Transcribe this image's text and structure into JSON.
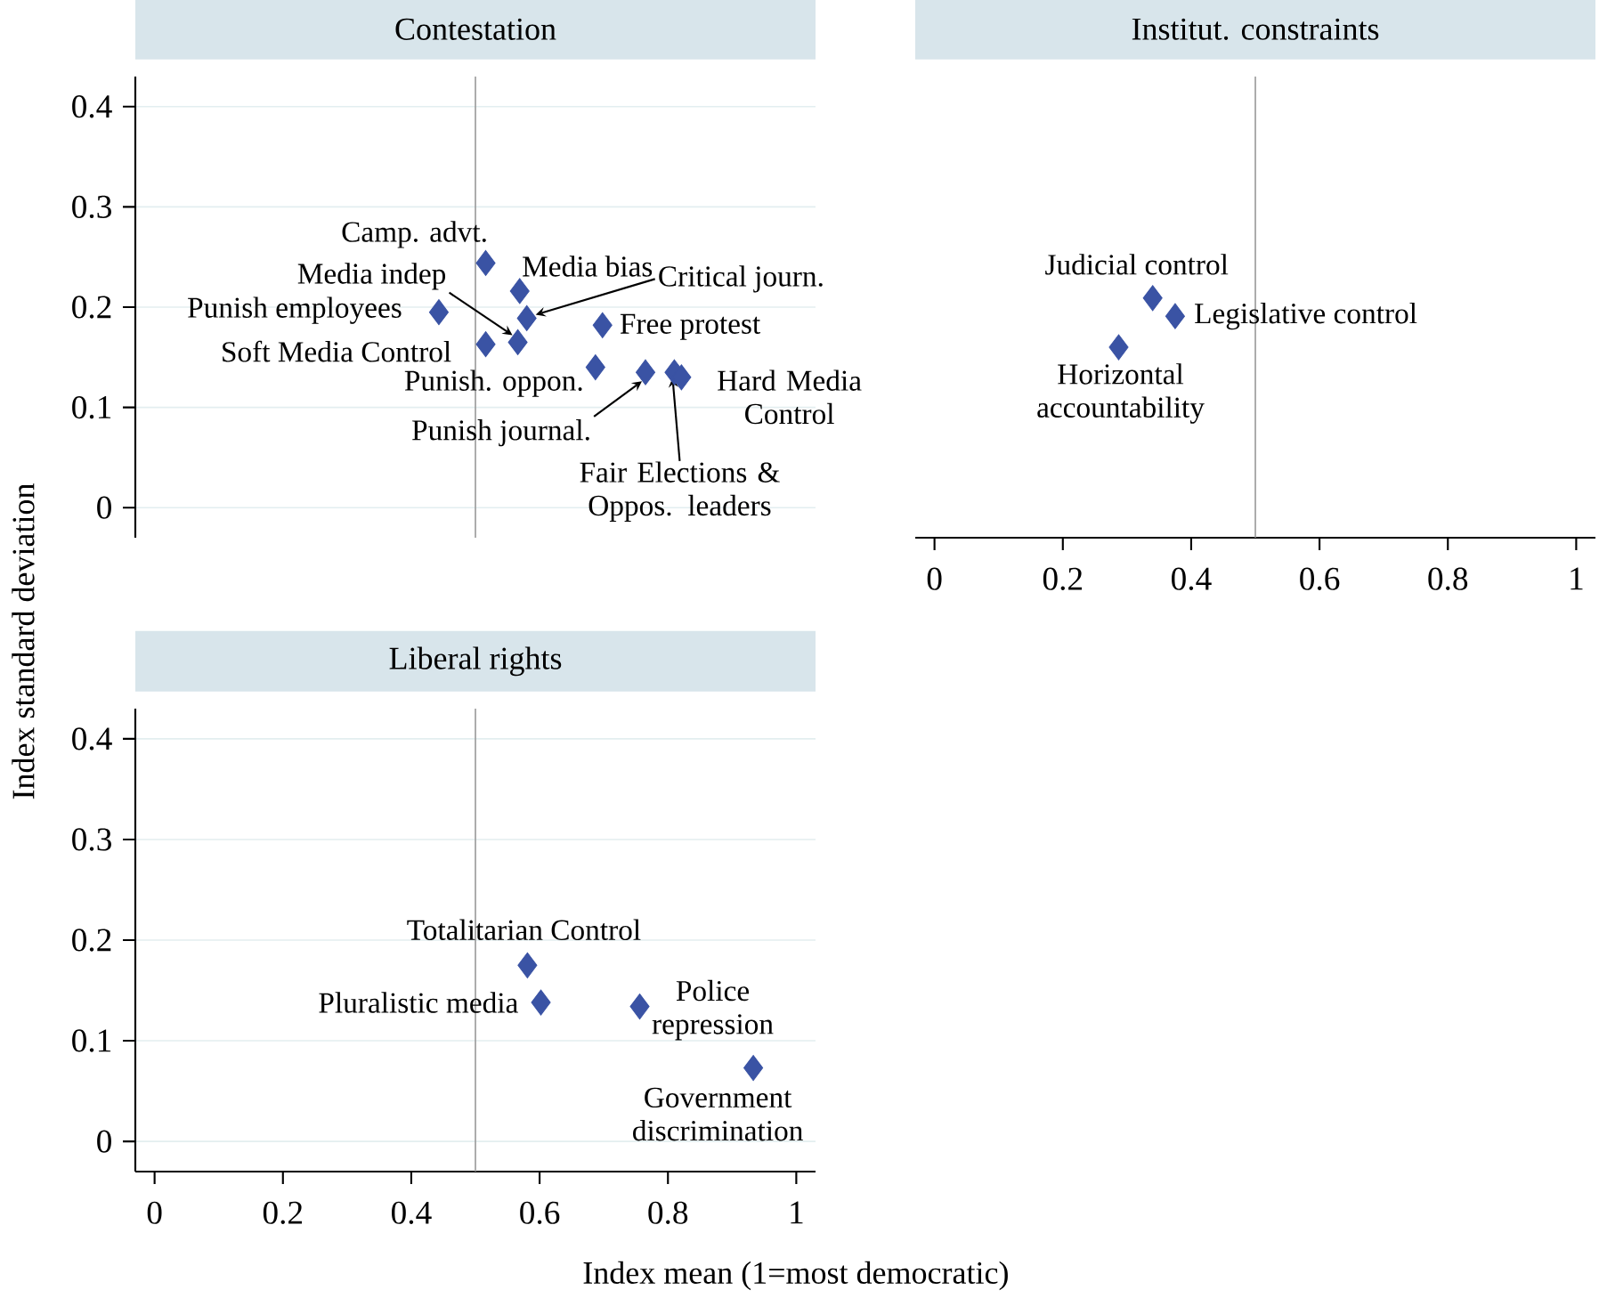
{
  "chart_data": [
    {
      "type": "scatter",
      "title": "Contestation",
      "ylabel": "Index standard deviation",
      "xlim": [
        -0.03,
        1.03
      ],
      "ylim": [
        -0.03,
        0.43
      ],
      "yticks": [
        0,
        0.1,
        0.2,
        0.3,
        0.4
      ],
      "grid": "y",
      "tick_labels": "y",
      "marker": "diamond",
      "ref_lines": [
        {
          "axis": "x",
          "value": 0.5,
          "color": "#999999"
        }
      ],
      "series": [
        {
          "color": "#3a53a4",
          "x": [
            0.516,
            0.569,
            0.58,
            0.443,
            0.516,
            0.566,
            0.698,
            0.687,
            0.765,
            0.81,
            0.821
          ],
          "values": [
            0.244,
            0.216,
            0.189,
            0.195,
            0.163,
            0.165,
            0.182,
            0.14,
            0.135,
            0.135,
            0.13
          ]
        }
      ],
      "annotations": [
        {
          "text": "Camp. advt.",
          "x": 0.516,
          "y": 0.244
        },
        {
          "text": "Media bias",
          "x": 0.569,
          "y": 0.216
        },
        {
          "text": "Critical journ.",
          "x": 0.58,
          "y": 0.189
        },
        {
          "text": "Punish employees",
          "x": 0.443,
          "y": 0.195
        },
        {
          "text": "Soft Media Control",
          "x": 0.516,
          "y": 0.163
        },
        {
          "text": "Media indep",
          "x": 0.566,
          "y": 0.165
        },
        {
          "text": "Free protest",
          "x": 0.698,
          "y": 0.182
        },
        {
          "text": "Punish. oppon.",
          "x": 0.687,
          "y": 0.14
        },
        {
          "text": "Punish journal.",
          "x": 0.765,
          "y": 0.135
        },
        {
          "text": "Fair Elections & Oppos. leaders",
          "x": 0.81,
          "y": 0.135
        },
        {
          "text": "Hard Media Control",
          "x": 0.821,
          "y": 0.13
        }
      ]
    },
    {
      "type": "scatter",
      "title": "Institut. constraints",
      "xlim": [
        -0.03,
        1.03
      ],
      "ylim": [
        -0.03,
        0.43
      ],
      "xticks": [
        0,
        0.2,
        0.4,
        0.6,
        0.8,
        1
      ],
      "yticks": [
        0,
        0.1,
        0.2,
        0.3,
        0.4
      ],
      "grid": "y",
      "tick_labels": "x",
      "marker": "diamond",
      "ref_lines": [
        {
          "axis": "x",
          "value": 0.5,
          "color": "#999999"
        }
      ],
      "series": [
        {
          "color": "#3a53a4",
          "x": [
            0.34,
            0.375,
            0.287
          ],
          "values": [
            0.209,
            0.191,
            0.16
          ]
        }
      ],
      "annotations": [
        {
          "text": "Judicial control",
          "x": 0.34,
          "y": 0.209
        },
        {
          "text": "Legislative control",
          "x": 0.375,
          "y": 0.191
        },
        {
          "text": "Horizontal accountability",
          "x": 0.287,
          "y": 0.16
        }
      ]
    },
    {
      "type": "scatter",
      "title": "Liberal rights",
      "xlabel": "Index mean (1=most democratic)",
      "xlim": [
        -0.03,
        1.03
      ],
      "ylim": [
        -0.03,
        0.43
      ],
      "xticks": [
        0,
        0.2,
        0.4,
        0.6,
        0.8,
        1
      ],
      "yticks": [
        0,
        0.1,
        0.2,
        0.3,
        0.4
      ],
      "grid": "y",
      "marker": "diamond",
      "ref_lines": [
        {
          "axis": "x",
          "value": 0.5,
          "color": "#999999"
        }
      ],
      "series": [
        {
          "color": "#3a53a4",
          "x": [
            0.581,
            0.602,
            0.756,
            0.933
          ],
          "values": [
            0.175,
            0.138,
            0.134,
            0.073
          ]
        }
      ],
      "annotations": [
        {
          "text": "Totalitarian Control",
          "x": 0.581,
          "y": 0.175
        },
        {
          "text": "Pluralistic media",
          "x": 0.602,
          "y": 0.138
        },
        {
          "text": "Police repression",
          "x": 0.756,
          "y": 0.134
        },
        {
          "text": "Government discrimination",
          "x": 0.933,
          "y": 0.073
        }
      ]
    }
  ]
}
